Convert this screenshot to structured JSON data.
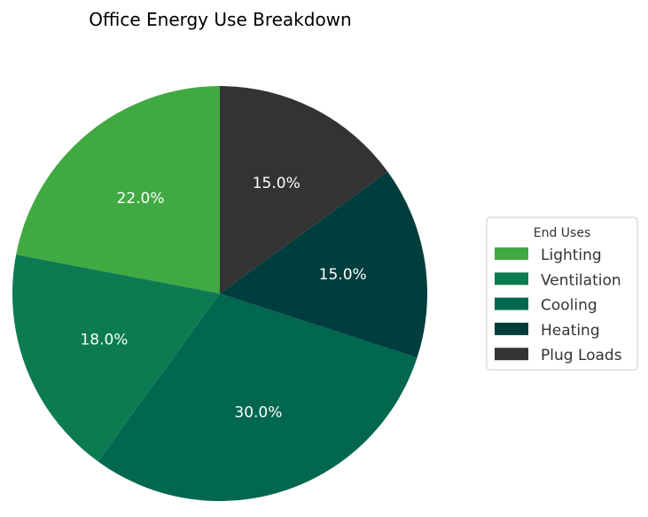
{
  "chart_data": {
    "type": "pie",
    "title": "Office Energy Use Breakdown",
    "legend_title": "End Uses",
    "legend_position": "right",
    "start_angle_deg": 90,
    "direction": "clockwise",
    "slices": [
      {
        "label": "Lighting",
        "value": 22.0,
        "pct_label": "22.0%",
        "color": "#41a942"
      },
      {
        "label": "Ventilation",
        "value": 18.0,
        "pct_label": "18.0%",
        "color": "#0c7b51"
      },
      {
        "label": "Cooling",
        "value": 30.0,
        "pct_label": "30.0%",
        "color": "#01674f"
      },
      {
        "label": "Heating",
        "value": 15.0,
        "pct_label": "15.0%",
        "color": "#003d3d"
      },
      {
        "label": "Plug Loads",
        "value": 15.0,
        "pct_label": "15.0%",
        "color": "#333333"
      }
    ],
    "label_color": "#ffffff",
    "slice_order_from_start_counterclockwise": [
      "Lighting",
      "Ventilation",
      "Cooling",
      "Heating",
      "Plug Loads"
    ]
  }
}
